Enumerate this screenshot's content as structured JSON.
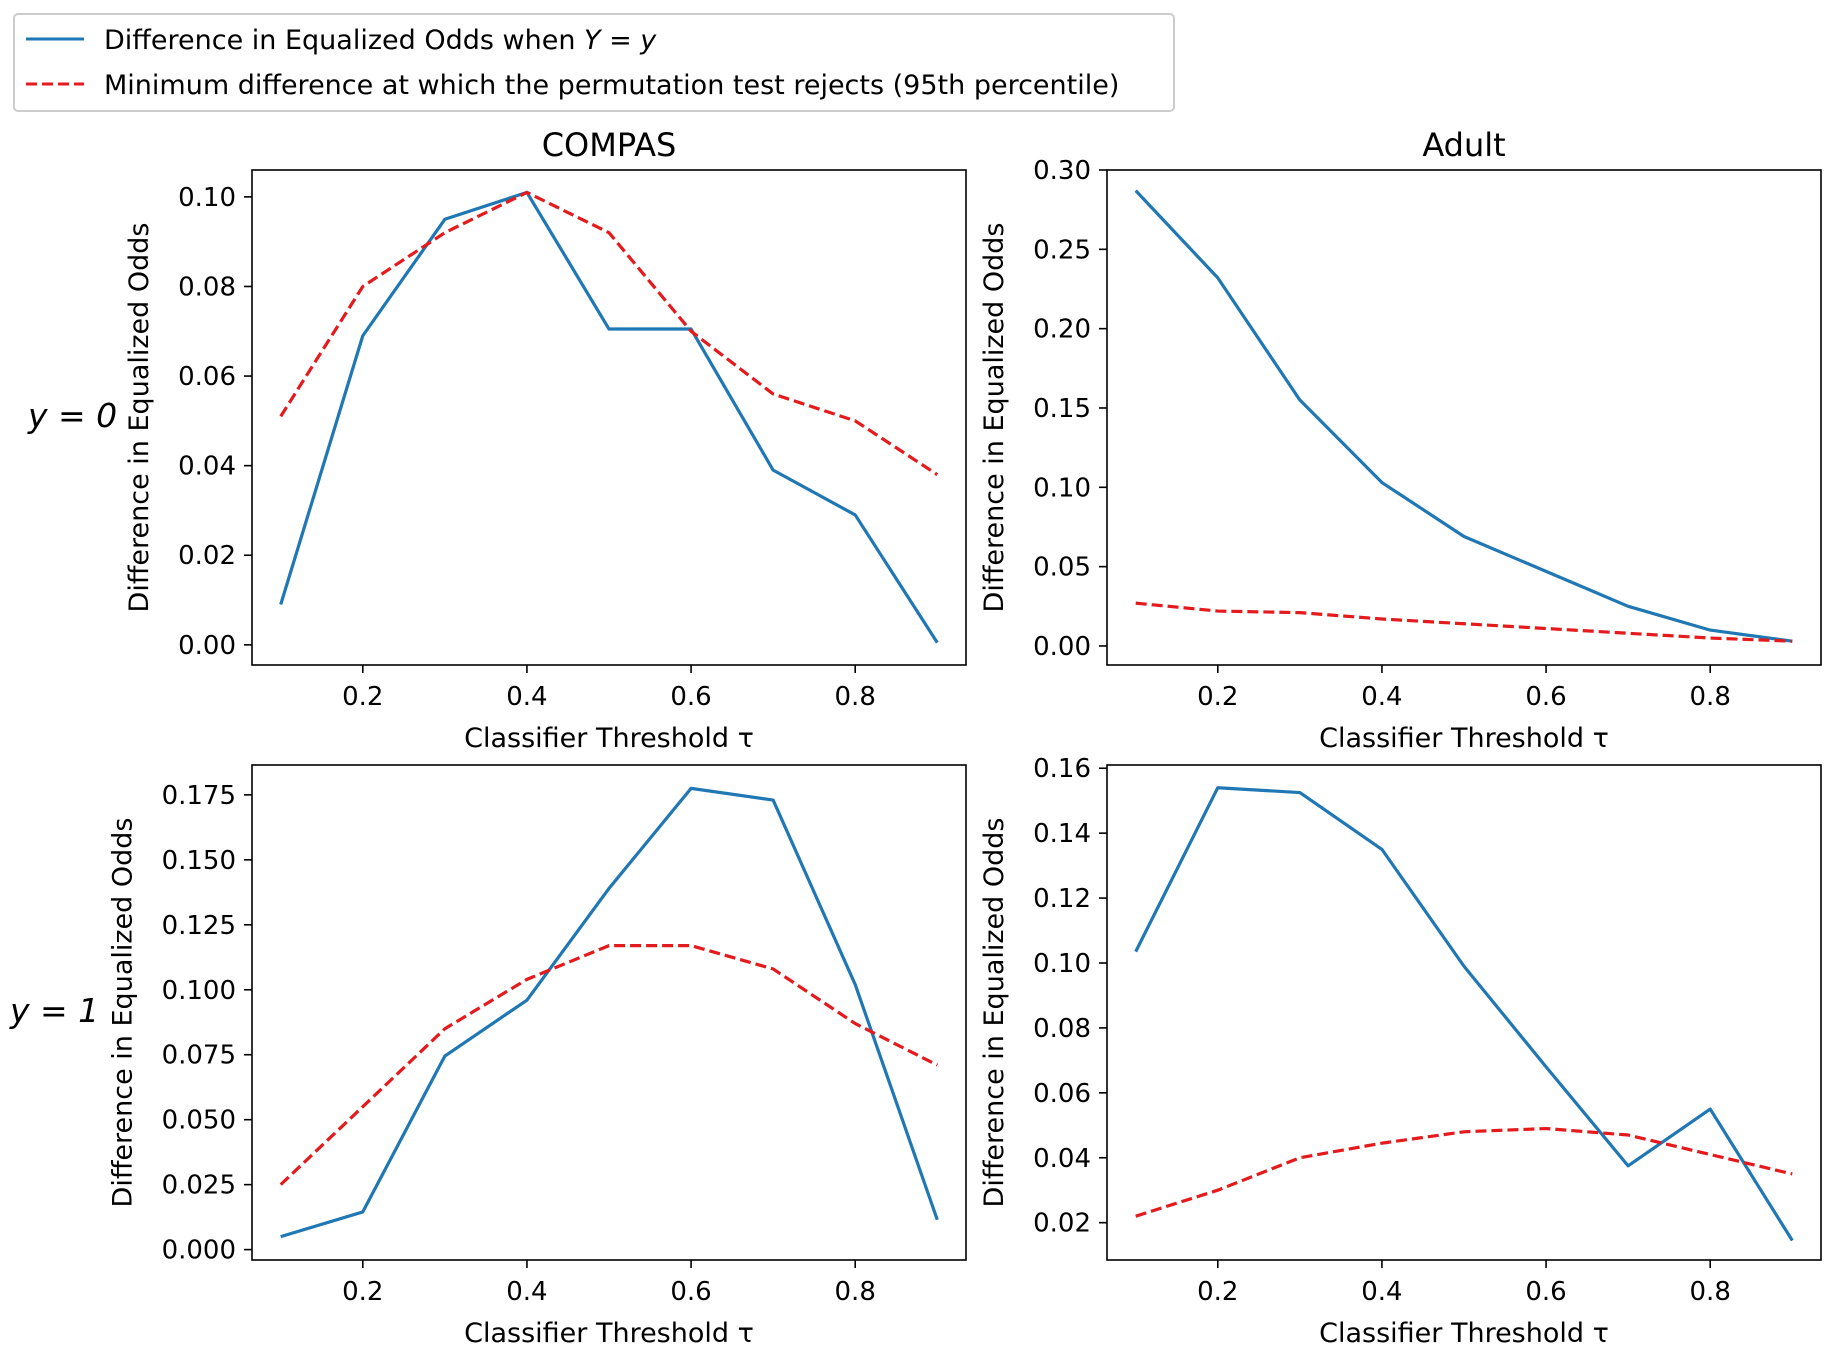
{
  "legend": {
    "entries": [
      {
        "label": "Difference in Equalized Odds when ",
        "label_math": "Y = y",
        "color": "#1f77b4",
        "dash": "solid"
      },
      {
        "label": "Minimum difference at which the permutation test rejects (95th percentile)",
        "color": "#e41a1c",
        "dash": "dashed"
      }
    ]
  },
  "row_labels": [
    "y = 0",
    "y = 1"
  ],
  "colors": {
    "blue": "#1f77b4",
    "red": "#e41a1c"
  },
  "chart_data": [
    {
      "type": "line",
      "title": "COMPAS",
      "row": "y = 0",
      "xlabel": "Classifier Threshold τ",
      "ylabel": "Difference in Equalized Odds",
      "xlim": [
        0.065,
        0.935
      ],
      "ylim": [
        -0.0045,
        0.106
      ],
      "xticks": [
        0.2,
        0.4,
        0.6,
        0.8
      ],
      "xtick_labels": [
        "0.2",
        "0.4",
        "0.6",
        "0.8"
      ],
      "yticks": [
        0.0,
        0.02,
        0.04,
        0.06,
        0.08,
        0.1
      ],
      "ytick_labels": [
        "0.00",
        "0.02",
        "0.04",
        "0.06",
        "0.08",
        "0.10"
      ],
      "x": [
        0.1,
        0.2,
        0.3,
        0.4,
        0.5,
        0.6,
        0.7,
        0.8,
        0.9
      ],
      "series": [
        {
          "name": "Difference in Equalized Odds when Y = y",
          "style": "solid",
          "values": [
            0.009,
            0.069,
            0.095,
            0.101,
            0.0705,
            0.0705,
            0.039,
            0.029,
            0.0005
          ]
        },
        {
          "name": "Minimum difference at which the permutation test rejects (95th percentile)",
          "style": "dashed",
          "values": [
            0.051,
            0.08,
            0.092,
            0.101,
            0.092,
            0.07,
            0.056,
            0.05,
            0.038
          ]
        }
      ]
    },
    {
      "type": "line",
      "title": "Adult",
      "row": "y = 0",
      "xlabel": "Classifier Threshold τ",
      "ylabel": "Difference in Equalized Odds",
      "xlim": [
        0.065,
        0.935
      ],
      "ylim": [
        -0.012,
        0.3
      ],
      "xticks": [
        0.2,
        0.4,
        0.6,
        0.8
      ],
      "xtick_labels": [
        "0.2",
        "0.4",
        "0.6",
        "0.8"
      ],
      "yticks": [
        0.0,
        0.05,
        0.1,
        0.15,
        0.2,
        0.25,
        0.3
      ],
      "ytick_labels": [
        "0.00",
        "0.05",
        "0.10",
        "0.15",
        "0.20",
        "0.25",
        "0.30"
      ],
      "x": [
        0.1,
        0.2,
        0.3,
        0.4,
        0.5,
        0.6,
        0.7,
        0.8,
        0.9
      ],
      "series": [
        {
          "name": "Difference in Equalized Odds when Y = y",
          "style": "solid",
          "values": [
            0.287,
            0.232,
            0.155,
            0.103,
            0.069,
            0.047,
            0.025,
            0.01,
            0.003
          ]
        },
        {
          "name": "Minimum difference at which the permutation test rejects (95th percentile)",
          "style": "dashed",
          "values": [
            0.027,
            0.022,
            0.021,
            0.017,
            0.014,
            0.011,
            0.008,
            0.005,
            0.003
          ]
        }
      ]
    },
    {
      "type": "line",
      "title": "",
      "row": "y = 1",
      "xlabel": "Classifier Threshold τ",
      "ylabel": "Difference in Equalized Odds",
      "xlim": [
        0.065,
        0.935
      ],
      "ylim": [
        -0.004,
        0.1865
      ],
      "xticks": [
        0.2,
        0.4,
        0.6,
        0.8
      ],
      "xtick_labels": [
        "0.2",
        "0.4",
        "0.6",
        "0.8"
      ],
      "yticks": [
        0.0,
        0.025,
        0.05,
        0.075,
        0.1,
        0.125,
        0.15,
        0.175
      ],
      "ytick_labels": [
        "0.000",
        "0.025",
        "0.050",
        "0.075",
        "0.100",
        "0.125",
        "0.150",
        "0.175"
      ],
      "x": [
        0.1,
        0.2,
        0.3,
        0.4,
        0.5,
        0.6,
        0.7,
        0.8,
        0.9
      ],
      "series": [
        {
          "name": "Difference in Equalized Odds when Y = y",
          "style": "solid",
          "values": [
            0.005,
            0.0145,
            0.0745,
            0.096,
            0.139,
            0.1775,
            0.173,
            0.102,
            0.0115
          ]
        },
        {
          "name": "Minimum difference at which the permutation test rejects (95th percentile)",
          "style": "dashed",
          "values": [
            0.025,
            0.055,
            0.085,
            0.104,
            0.117,
            0.117,
            0.108,
            0.087,
            0.071
          ]
        }
      ]
    },
    {
      "type": "line",
      "title": "",
      "row": "y = 1",
      "xlabel": "Classifier Threshold τ",
      "ylabel": "Difference in Equalized Odds",
      "xlim": [
        0.065,
        0.935
      ],
      "ylim": [
        0.0085,
        0.161
      ],
      "xticks": [
        0.2,
        0.4,
        0.6,
        0.8
      ],
      "xtick_labels": [
        "0.2",
        "0.4",
        "0.6",
        "0.8"
      ],
      "yticks": [
        0.02,
        0.04,
        0.06,
        0.08,
        0.1,
        0.12,
        0.14,
        0.16
      ],
      "ytick_labels": [
        "0.02",
        "0.04",
        "0.06",
        "0.08",
        "0.10",
        "0.12",
        "0.14",
        "0.16"
      ],
      "x": [
        0.1,
        0.2,
        0.3,
        0.4,
        0.5,
        0.6,
        0.7,
        0.8,
        0.9
      ],
      "series": [
        {
          "name": "Difference in Equalized Odds when Y = y",
          "style": "solid",
          "values": [
            0.1035,
            0.154,
            0.1525,
            0.135,
            0.099,
            0.068,
            0.0375,
            0.055,
            0.0145
          ]
        },
        {
          "name": "Minimum difference at which the permutation test rejects (95th percentile)",
          "style": "dashed",
          "values": [
            0.022,
            0.03,
            0.04,
            0.0445,
            0.048,
            0.049,
            0.047,
            0.041,
            0.035
          ]
        }
      ]
    }
  ]
}
